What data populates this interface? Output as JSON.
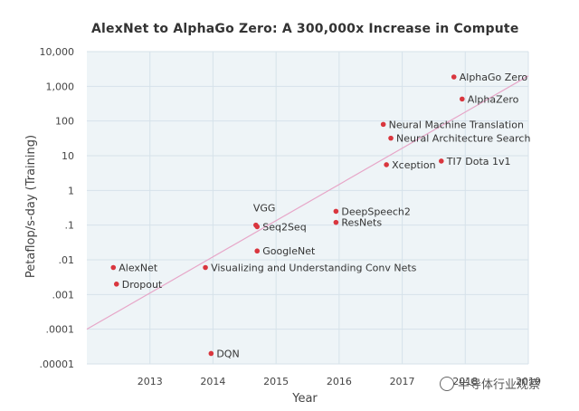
{
  "chart_data": {
    "type": "scatter",
    "title": "AlexNet to AlphaGo Zero: A 300,000x Increase in Compute",
    "xlabel": "Year",
    "ylabel": "Petaflop/s-day (Training)",
    "xlim": [
      2012,
      2019
    ],
    "ylim": [
      1e-05,
      10000
    ],
    "yscale": "log",
    "x_ticks": [
      {
        "value": 2013,
        "label": "2013"
      },
      {
        "value": 2014,
        "label": "2014"
      },
      {
        "value": 2015,
        "label": "2015"
      },
      {
        "value": 2016,
        "label": "2016"
      },
      {
        "value": 2017,
        "label": "2017"
      },
      {
        "value": 2018,
        "label": "2018"
      },
      {
        "value": 2019,
        "label": "2019"
      }
    ],
    "y_ticks": [
      {
        "value": 10000,
        "label": "10,000"
      },
      {
        "value": 1000,
        "label": "1,000"
      },
      {
        "value": 100,
        "label": "100"
      },
      {
        "value": 10,
        "label": "10"
      },
      {
        "value": 1,
        "label": "1"
      },
      {
        "value": 0.1,
        "label": ".1"
      },
      {
        "value": 0.01,
        "label": ".01"
      },
      {
        "value": 0.001,
        "label": ".001"
      },
      {
        "value": 0.0001,
        "label": ".0001"
      },
      {
        "value": 1e-05,
        "label": ".00001"
      }
    ],
    "grid": true,
    "colors": {
      "point": "#d9363e",
      "trend": "#e7a6c8",
      "grid": "#d6e2ea",
      "background": "#eef4f7"
    },
    "trend_line": {
      "x": [
        2012,
        2019
      ],
      "y": [
        0.0001,
        2000
      ]
    },
    "points": [
      {
        "label": "AlexNet",
        "x": 2012.42,
        "y": 0.006
      },
      {
        "label": "Dropout",
        "x": 2012.47,
        "y": 0.002
      },
      {
        "label": "Visualizing and Understanding Conv Nets",
        "x": 2013.88,
        "y": 0.006
      },
      {
        "label": "DQN",
        "x": 2013.97,
        "y": 2e-05
      },
      {
        "label": "GoogleNet",
        "x": 2014.7,
        "y": 0.018
      },
      {
        "label": "Seq2Seq",
        "x": 2014.7,
        "y": 0.09
      },
      {
        "label": "VGG",
        "x": 2014.68,
        "y": 0.1,
        "label_position": "above"
      },
      {
        "label": "DeepSpeech2",
        "x": 2015.95,
        "y": 0.25
      },
      {
        "label": "ResNets",
        "x": 2015.95,
        "y": 0.12
      },
      {
        "label": "Neural Machine Translation",
        "x": 2016.7,
        "y": 80
      },
      {
        "label": "Neural Architecture Search",
        "x": 2016.82,
        "y": 32
      },
      {
        "label": "Xception",
        "x": 2016.75,
        "y": 5.5
      },
      {
        "label": "TI7 Dota 1v1",
        "x": 2017.62,
        "y": 7
      },
      {
        "label": "AlphaGo Zero",
        "x": 2017.82,
        "y": 1860
      },
      {
        "label": "AlphaZero",
        "x": 2017.95,
        "y": 430
      }
    ]
  },
  "watermark": {
    "text": "半导体行业观察",
    "icon": "wechat-icon"
  }
}
